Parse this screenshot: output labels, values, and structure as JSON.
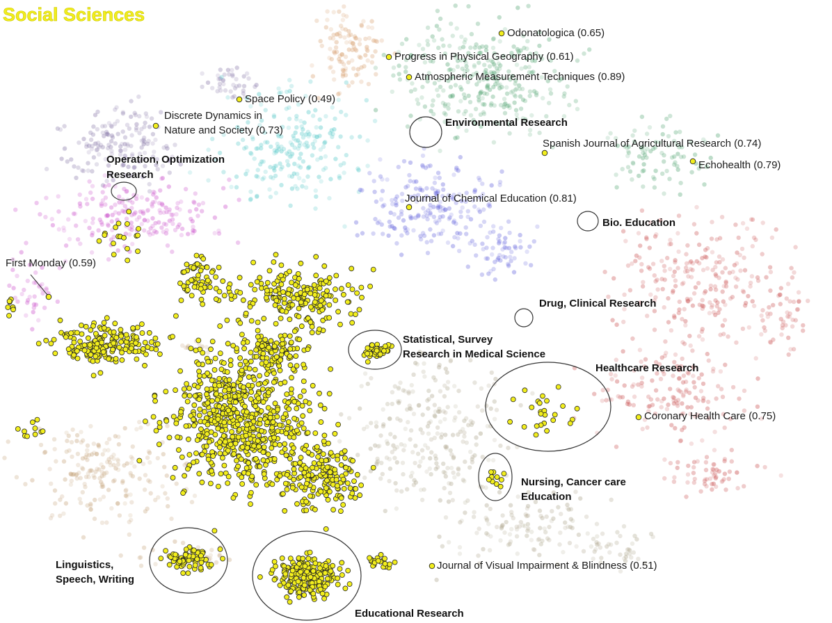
{
  "title": "Social Sciences",
  "colors": {
    "highlight_fill": "#f2ee1d",
    "highlight_stroke": "#222222",
    "title": "#f2ee1d",
    "fields": {
      "orange": "#d8a070",
      "green": "#5aa878",
      "purple": "#8a7aaa",
      "magenta": "#cc55cc",
      "cyan": "#55c8c8",
      "blue": "#6a6ade",
      "red": "#cc5a5a",
      "brown": "#c8a882",
      "olive": "#b0a890"
    }
  },
  "chart_data": {
    "type": "scatter",
    "title": "Social Sciences",
    "xlabel": "",
    "ylabel": "",
    "grid": false,
    "legend": "none",
    "journal_annotations": [
      {
        "name": "Odonatologica (0.65)"
      },
      {
        "name": "Progress in Physical Geography (0.61)"
      },
      {
        "name": "Atmospheric Measurement Techniques (0.89)"
      },
      {
        "name": "Space Policy (0.49)"
      },
      {
        "name": "Discrete Dynamics in",
        "name2": "Nature and Society (0.73)"
      },
      {
        "name": "Spanish Journal of Agricultural Research (0.74)"
      },
      {
        "name": "Echohealth (0.79)"
      },
      {
        "name": "Journal of Chemical Education (0.81)"
      },
      {
        "name": "First Monday (0.59)"
      },
      {
        "name": "Coronary Health Care (0.75)"
      },
      {
        "name": "Journal of Visual Impairment & Blindness (0.51)"
      }
    ],
    "cluster_annotations": [
      {
        "line1": "Environmental Research"
      },
      {
        "line1": "Operation, Optimization",
        "line2": "Research"
      },
      {
        "line1": "Bio. Education"
      },
      {
        "line1": "Drug, Clinical Research"
      },
      {
        "line1": "Statistical, Survey",
        "line2": "Research in Medical Science"
      },
      {
        "line1": "Healthcare Research"
      },
      {
        "line1": "Nursing, Cancer care",
        "line2": "Education"
      },
      {
        "line1": "Linguistics,",
        "line2": "Speech, Writing"
      },
      {
        "line1": "Educational Research"
      }
    ]
  }
}
